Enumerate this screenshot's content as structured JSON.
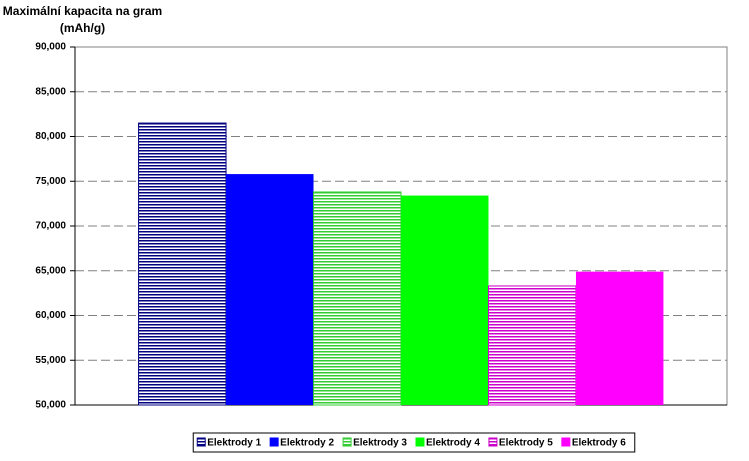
{
  "chart_data": {
    "type": "bar",
    "title": "Maximální kapacita na gram (mAh/g)",
    "categories": [
      null
    ],
    "series": [
      {
        "name": "Elektrody 1",
        "color": "#000080",
        "pattern": "stripes",
        "values": [
          81500
        ]
      },
      {
        "name": "Elektrody 2",
        "color": "#0000ff",
        "pattern": "solid",
        "values": [
          75800
        ]
      },
      {
        "name": "Elektrody 3",
        "color": "#33cc33",
        "pattern": "stripes",
        "values": [
          73800
        ]
      },
      {
        "name": "Elektrody 4",
        "color": "#00ff00",
        "pattern": "solid",
        "values": [
          73400
        ]
      },
      {
        "name": "Elektrody 5",
        "color": "#cc00cc",
        "pattern": "stripes",
        "values": [
          63300
        ]
      },
      {
        "name": "Elektrody 6",
        "color": "#ff00ff",
        "pattern": "solid",
        "values": [
          64900
        ]
      }
    ],
    "ylim": [
      50000,
      90000
    ],
    "yticks": [
      {
        "value": 50000,
        "label": "50,000"
      },
      {
        "value": 55000,
        "label": "55,000"
      },
      {
        "value": 60000,
        "label": "60,000"
      },
      {
        "value": 65000,
        "label": "65,000"
      },
      {
        "value": 70000,
        "label": "70,000"
      },
      {
        "value": 75000,
        "label": "75,000"
      },
      {
        "value": 80000,
        "label": "80,000"
      },
      {
        "value": 85000,
        "label": "85,000"
      },
      {
        "value": 90000,
        "label": "90,000"
      }
    ],
    "grid": true,
    "legend": "bottom"
  }
}
